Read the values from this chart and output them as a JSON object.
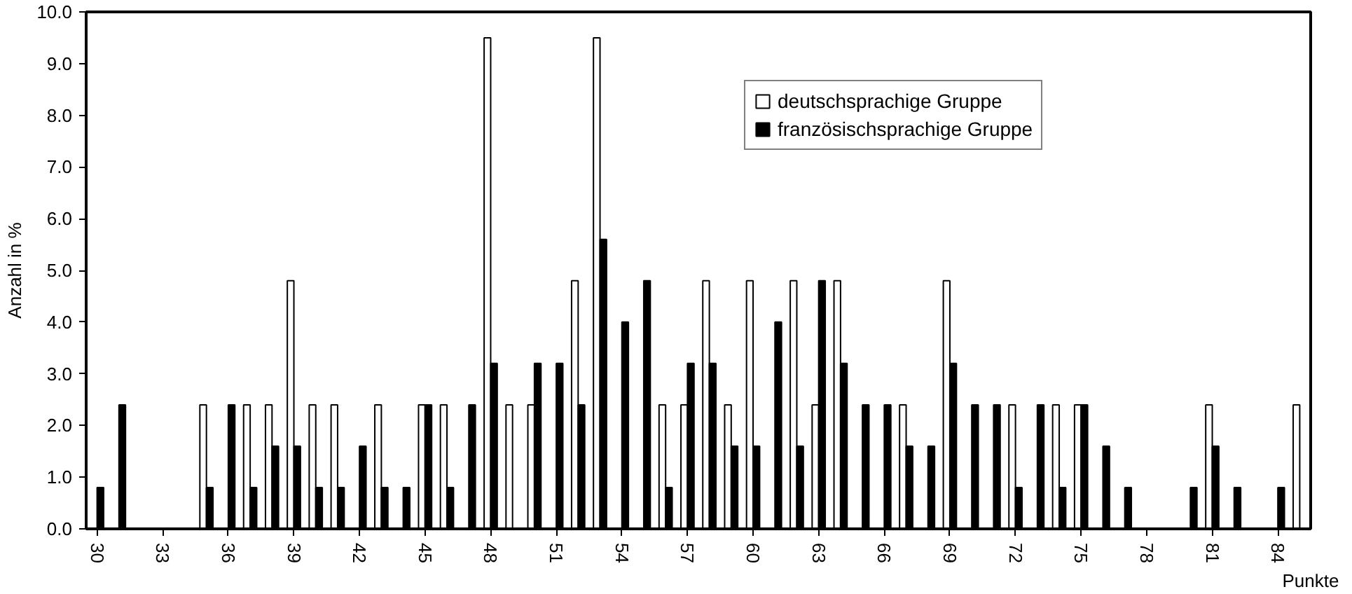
{
  "chart_data": {
    "type": "bar",
    "xlabel": "Punkte",
    "ylabel": "Anzahl in %",
    "categories": [
      "30",
      null,
      null,
      "33",
      null,
      null,
      "36",
      null,
      null,
      "39",
      null,
      null,
      "42",
      null,
      null,
      "45",
      null,
      null,
      "48",
      null,
      null,
      "51",
      null,
      null,
      "54",
      null,
      null,
      "57",
      null,
      null,
      "60",
      null,
      null,
      "63",
      null,
      null,
      "66",
      null,
      null,
      "69",
      null,
      null,
      "72",
      null,
      null,
      "75",
      null,
      null,
      "78",
      null,
      null,
      "81",
      null,
      null,
      "84",
      null
    ],
    "series": [
      {
        "name": "deutschsprachige Gruppe",
        "color": "#ffffff",
        "values": [
          0,
          0,
          0,
          0,
          0,
          2.4,
          0,
          2.4,
          2.4,
          4.8,
          2.4,
          2.4,
          0,
          2.4,
          0,
          2.4,
          2.4,
          0,
          9.5,
          2.4,
          2.4,
          0,
          4.8,
          9.5,
          0,
          0,
          2.4,
          2.4,
          4.8,
          2.4,
          4.8,
          0,
          4.8,
          2.4,
          4.8,
          0,
          0,
          2.4,
          0,
          4.8,
          0,
          0,
          2.4,
          0,
          2.4,
          2.4,
          0,
          0,
          0,
          0,
          0,
          2.4,
          0,
          0,
          0,
          2.4
        ]
      },
      {
        "name": "französischsprachige Gruppe",
        "color": "#000000",
        "values": [
          0.8,
          2.4,
          0,
          0,
          0,
          0.8,
          2.4,
          0.8,
          1.6,
          1.6,
          0.8,
          0.8,
          1.6,
          0.8,
          0.8,
          2.4,
          0.8,
          2.4,
          3.2,
          0,
          3.2,
          3.2,
          2.4,
          5.6,
          4.0,
          4.8,
          0.8,
          3.2,
          3.2,
          1.6,
          1.6,
          4.0,
          1.6,
          4.8,
          3.2,
          2.4,
          2.4,
          1.6,
          1.6,
          3.2,
          2.4,
          2.4,
          0.8,
          2.4,
          0.8,
          2.4,
          1.6,
          0.8,
          0,
          0,
          0.8,
          1.6,
          0.8,
          0,
          0.8,
          0
        ]
      }
    ],
    "ylim": [
      0,
      10
    ],
    "yticks": [
      {
        "value": 0,
        "label": "0.0"
      },
      {
        "value": 1,
        "label": "1.0"
      },
      {
        "value": 2,
        "label": "2.0"
      },
      {
        "value": 3,
        "label": "3.0"
      },
      {
        "value": 4,
        "label": "4.0"
      },
      {
        "value": 5,
        "label": "5.0"
      },
      {
        "value": 6,
        "label": "6.0"
      },
      {
        "value": 7,
        "label": "7.0"
      },
      {
        "value": 8,
        "label": "8.0"
      },
      {
        "value": 9,
        "label": "9.0"
      },
      {
        "value": 10,
        "label": "10.0"
      }
    ],
    "grid": false,
    "legend": "top"
  }
}
